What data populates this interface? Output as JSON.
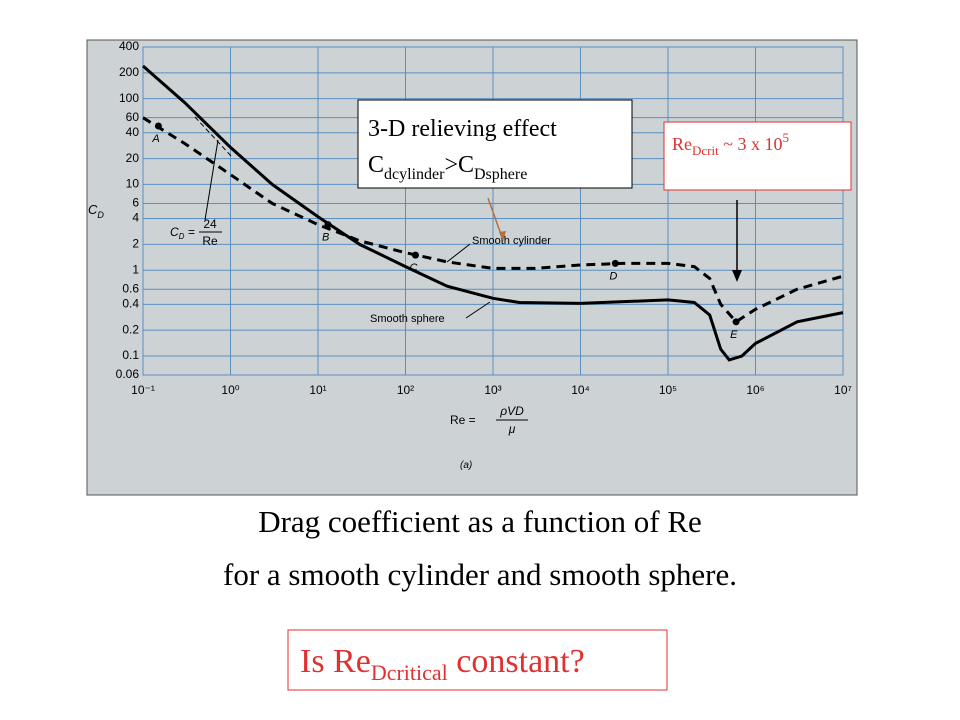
{
  "chart_data": {
    "type": "line",
    "y_label": {
      "main": "C",
      "sub": "D"
    },
    "x_label": {
      "lhs": "Re =",
      "num": "ρVD",
      "den": "μ"
    },
    "formula": {
      "main": "C",
      "sub": "D",
      "eq": "=",
      "num": "24",
      "den": "Re"
    },
    "panel": "(a)",
    "xscale": "log",
    "yscale": "log",
    "grid": true,
    "xlim": [
      0.1,
      10000000
    ],
    "ylim": [
      0.06,
      400
    ],
    "xticks": [
      {
        "value": 0.1,
        "label": "10⁻¹"
      },
      {
        "value": 1,
        "label": "10⁰"
      },
      {
        "value": 10,
        "label": "10¹"
      },
      {
        "value": 100,
        "label": "10²"
      },
      {
        "value": 1000,
        "label": "10³"
      },
      {
        "value": 10000,
        "label": "10⁴"
      },
      {
        "value": 100000,
        "label": "10⁵"
      },
      {
        "value": 1000000,
        "label": "10⁶"
      },
      {
        "value": 10000000,
        "label": "10⁷"
      }
    ],
    "yticks": [
      400,
      200,
      100,
      60,
      40,
      20,
      10,
      6,
      4,
      2,
      1,
      0.6,
      0.4,
      0.2,
      0.1,
      0.06
    ],
    "series": [
      {
        "name": "Smooth sphere",
        "color": "#000000",
        "dash": false,
        "x": [
          0.1,
          0.3,
          1,
          3,
          10,
          30,
          100,
          300,
          1000,
          2000,
          10000,
          100000,
          200000,
          300000,
          400000,
          500000,
          700000,
          1000000,
          3000000,
          10000000
        ],
        "values": [
          240,
          90,
          27,
          10,
          4.2,
          2,
          1.1,
          0.65,
          0.47,
          0.42,
          0.41,
          0.45,
          0.42,
          0.3,
          0.12,
          0.09,
          0.1,
          0.14,
          0.25,
          0.32
        ]
      },
      {
        "name": "Smooth cylinder",
        "color": "#000000",
        "dash": true,
        "x": [
          0.1,
          0.3,
          1,
          3,
          10,
          30,
          100,
          300,
          1000,
          3000,
          10000,
          30000,
          100000,
          200000,
          300000,
          400000,
          600000,
          1000000,
          3000000,
          10000000
        ],
        "values": [
          60,
          30,
          13,
          6,
          3.4,
          2.2,
          1.6,
          1.25,
          1.05,
          1.05,
          1.15,
          1.2,
          1.2,
          1.1,
          0.8,
          0.4,
          0.25,
          0.35,
          0.6,
          0.85
        ]
      }
    ],
    "points": [
      {
        "label": "A",
        "x": 0.15,
        "y": 48
      },
      {
        "label": "B",
        "x": 13,
        "y": 3.4
      },
      {
        "label": "C",
        "x": 130,
        "y": 1.5
      },
      {
        "label": "D",
        "x": 25000,
        "y": 1.2
      },
      {
        "label": "E",
        "x": 600000,
        "y": 0.25
      }
    ]
  },
  "annotations": {
    "relief_box": {
      "line1": "3-D relieving effect",
      "line2": [
        "C",
        "dcylinder",
        ">C",
        "Dsphere"
      ]
    },
    "crit_box": [
      "Re",
      "Dcrit",
      " ~ 3 x 10",
      "5"
    ]
  },
  "caption": [
    "Drag coefficient as a function of Re",
    "for a smooth cylinder and smooth sphere."
  ],
  "question": [
    "Is Re",
    "Dcritical",
    " constant?"
  ]
}
